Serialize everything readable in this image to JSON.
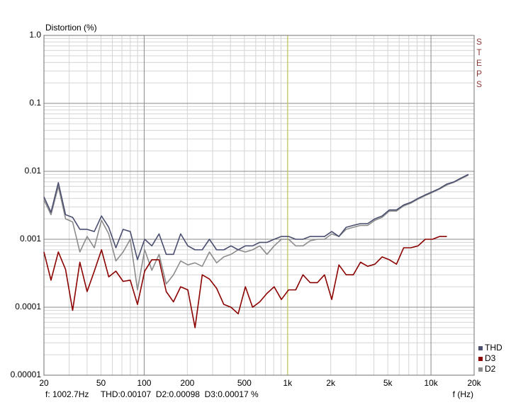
{
  "chart_data": {
    "type": "line",
    "ylabel": "Distortion (%)",
    "xlabel": "f (Hz)",
    "side_label": "STEPS",
    "footer": "f: 1002.7Hz     THD:0.00107  D2:0.00098  D3:0.00017 %",
    "cursor_x": 1002.7,
    "xscale": "log",
    "yscale": "log",
    "grid": true,
    "minor_grid": true,
    "legend": "lower right",
    "xlim": [
      20,
      20000
    ],
    "ylim": [
      1e-05,
      1
    ],
    "xticks": [
      20,
      50,
      100,
      200,
      500,
      {
        "value": 1000,
        "label": "1k"
      },
      {
        "value": 2000,
        "label": "2k"
      },
      {
        "value": 5000,
        "label": "5k"
      },
      {
        "value": 10000,
        "label": "10k"
      },
      {
        "value": 20000,
        "label": "20k"
      }
    ],
    "yticks": [
      {
        "value": 1,
        "label": "1.0"
      },
      0.1,
      0.01,
      0.001,
      0.0001,
      1e-05
    ],
    "x": [
      20,
      22.4,
      25.2,
      28.3,
      31.7,
      35.6,
      40,
      44.9,
      50.4,
      56.6,
      63.5,
      71.3,
      80,
      89.8,
      100.8,
      113.1,
      127,
      142.5,
      160,
      179.6,
      201.6,
      226.3,
      254,
      285.1,
      320,
      359.2,
      403.2,
      452.5,
      508,
      570.2,
      640,
      718.4,
      806.3,
      905.1,
      1016,
      1140,
      1280,
      1437,
      1613,
      1810,
      2032,
      2281,
      2560,
      2874,
      3225,
      3620,
      4064,
      4561,
      5120,
      5747,
      6451,
      7241,
      8127,
      9123,
      10240,
      11494,
      12902,
      14482,
      16255,
      18246
    ],
    "series": [
      {
        "name": "THD",
        "color": "#4b4f70",
        "values": [
          0.0042,
          0.0025,
          0.0068,
          0.0023,
          0.0021,
          0.0014,
          0.0014,
          0.0013,
          0.0022,
          0.0015,
          0.00075,
          0.0014,
          0.0013,
          0.0005,
          0.001,
          0.0008,
          0.0012,
          0.0006,
          0.0006,
          0.0012,
          0.0008,
          0.0007,
          0.0007,
          0.001,
          0.0007,
          0.0007,
          0.0008,
          0.0007,
          0.0008,
          0.0008,
          0.0009,
          0.0009,
          0.001,
          0.0011,
          0.0011,
          0.001,
          0.001,
          0.0011,
          0.0011,
          0.0011,
          0.0013,
          0.0011,
          0.0015,
          0.0016,
          0.0017,
          0.0017,
          0.002,
          0.0022,
          0.0027,
          0.0027,
          0.0032,
          0.0035,
          0.004,
          0.0045,
          0.005,
          0.0056,
          0.0065,
          0.007,
          0.008,
          0.009
        ]
      },
      {
        "name": "D3",
        "color": "#8b0000",
        "values": [
          0.00065,
          0.00025,
          0.00065,
          0.00036,
          9e-05,
          0.00046,
          0.00017,
          0.00034,
          0.0007,
          0.00028,
          0.00034,
          0.00024,
          0.00025,
          0.00011,
          0.00034,
          0.0005,
          0.0005,
          0.00017,
          0.00012,
          0.0002,
          0.00018,
          5e-05,
          0.0003,
          0.00026,
          0.00019,
          0.00011,
          0.0001,
          8e-05,
          0.0002,
          0.0001,
          0.00012,
          0.00016,
          0.0002,
          0.00013,
          0.00018,
          0.00018,
          0.0003,
          0.00023,
          0.00023,
          0.0003,
          0.00013,
          0.00042,
          0.0003,
          0.0003,
          0.00046,
          0.0004,
          0.00043,
          0.00055,
          0.0005,
          0.00043,
          0.00075,
          0.00075,
          0.0008,
          0.001,
          0.001,
          0.0011,
          0.0011,
          null,
          null,
          null
        ]
      },
      {
        "name": "D2",
        "color": "#8c8c8c",
        "values": [
          0.0038,
          0.0023,
          0.006,
          0.002,
          0.0018,
          0.00065,
          0.0011,
          0.00075,
          0.0019,
          0.0012,
          0.00048,
          0.00065,
          0.001,
          0.00018,
          0.0007,
          0.00035,
          0.0006,
          0.00022,
          0.0003,
          0.00048,
          0.00042,
          0.00045,
          0.0004,
          0.00065,
          0.00045,
          0.00055,
          0.0006,
          0.0007,
          0.00065,
          0.0007,
          0.0008,
          0.0006,
          0.0008,
          0.001,
          0.001,
          0.0008,
          0.0008,
          0.00095,
          0.001,
          0.001,
          0.0012,
          0.0011,
          0.0014,
          0.0015,
          0.0016,
          0.0016,
          0.0019,
          0.0021,
          0.0026,
          0.0026,
          0.0031,
          0.0034,
          0.0039,
          0.0044,
          0.0049,
          0.0055,
          0.0063,
          0.0069,
          0.0078,
          0.0088
        ]
      }
    ]
  }
}
